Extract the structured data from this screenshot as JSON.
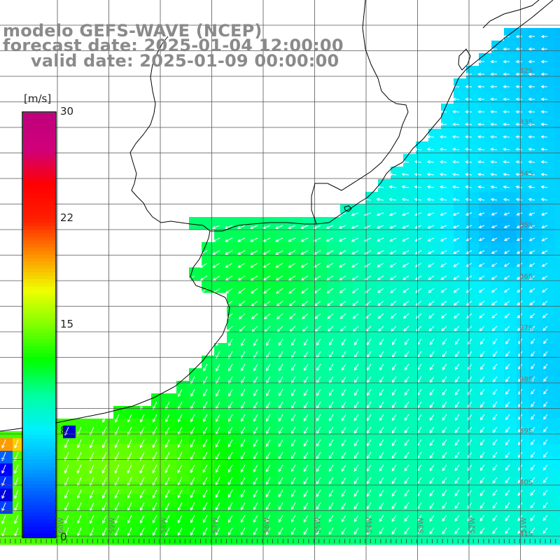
{
  "header": {
    "model_line": "modelo GEFS-WAVE (NCEP)",
    "forecast_line": "forecast date: 2025-01-04 12:00:00",
    "valid_line": "valid date: 2025-01-09 00:00:00"
  },
  "colorbar": {
    "unit": "[m/s]",
    "ticks": [
      "30",
      "22",
      "15",
      "8",
      "0"
    ],
    "colors": [
      "#0000ff",
      "#0050ff",
      "#00a8ff",
      "#00f0ff",
      "#00ffa0",
      "#00ff00",
      "#80ff00",
      "#f0ff00",
      "#ff9000",
      "#ff2000",
      "#ff0000",
      "#d0007a",
      "#c0007c"
    ]
  },
  "map": {
    "lat_labels": [
      "32S",
      "33S",
      "34S",
      "35S",
      "36S",
      "37S",
      "38S",
      "39S",
      "40S",
      "41S"
    ],
    "lon_labels": [
      "60W",
      "59W",
      "58W",
      "57W",
      "56W",
      "55W",
      "54W",
      "53W",
      "52W",
      "51W"
    ],
    "field": "wind speed",
    "arrow_color": "#ffffff",
    "coast_color": "#000000",
    "grid_color": "#555555"
  }
}
